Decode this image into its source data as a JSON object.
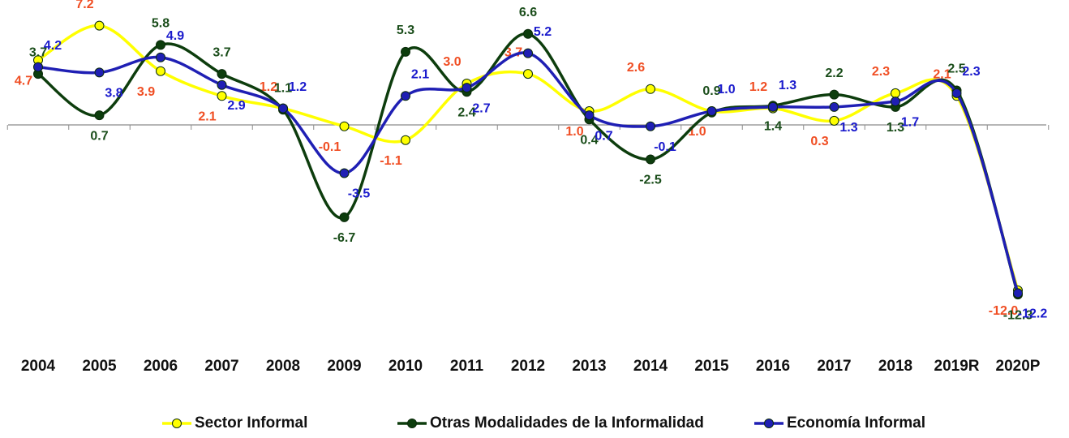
{
  "chart_data": {
    "type": "line",
    "categories": [
      "2004",
      "2005",
      "2006",
      "2007",
      "2008",
      "2009",
      "2010",
      "2011",
      "2012",
      "2013",
      "2014",
      "2015",
      "2016",
      "2017",
      "2018",
      "2019R",
      "2020P"
    ],
    "ylim": [
      -13,
      8
    ],
    "smooth": true,
    "series": [
      {
        "name": "Sector Informal",
        "color": "#ffff00",
        "label_color": "#f04e23",
        "values": [
          4.7,
          7.2,
          3.9,
          2.1,
          1.2,
          -0.1,
          -1.1,
          3.0,
          3.7,
          1.0,
          2.6,
          1.0,
          1.2,
          0.3,
          2.3,
          2.1,
          -12.0
        ],
        "value_labels": [
          "4.7",
          "7.2",
          "3.9",
          "2.1",
          "1.2",
          "-0.1",
          "-1.1",
          "3.0",
          "3.7",
          "1.0",
          "2.6",
          "1.0",
          "1.2",
          "0.3",
          "2.3",
          "2.1",
          "-12.0"
        ]
      },
      {
        "name": "Otras Modalidades de la Informalidad",
        "color": "#0d3d0d",
        "label_color": "#1a4d1a",
        "values": [
          3.7,
          0.7,
          5.8,
          3.7,
          1.1,
          -6.7,
          5.3,
          2.4,
          6.6,
          0.4,
          -2.5,
          0.9,
          1.4,
          2.2,
          1.3,
          2.5,
          -12.3
        ],
        "value_labels": [
          "3.7",
          "0.7",
          "5.8",
          "3.7",
          "1.1",
          "-6.7",
          "5.3",
          "2.4",
          "6.6",
          "0.4",
          "-2.5",
          "0.9",
          "1.4",
          "2.2",
          "1.3",
          "2.5",
          "-12.3"
        ]
      },
      {
        "name": "Economía Informal",
        "color": "#1f1fb4",
        "label_color": "#1a1acc",
        "values": [
          4.2,
          3.8,
          4.9,
          2.9,
          1.2,
          -3.5,
          2.1,
          2.7,
          5.2,
          0.7,
          -0.1,
          1.0,
          1.3,
          1.3,
          1.7,
          2.3,
          -12.2
        ],
        "value_labels": [
          "4.2",
          "3.8",
          "4.9",
          "2.9",
          "1.2",
          "-3.5",
          "2.1",
          "2.7",
          "5.2",
          "0.7",
          "-0.1",
          "1.0",
          "1.3",
          "1.3",
          "1.7",
          "2.3",
          "-12.2"
        ]
      }
    ]
  }
}
